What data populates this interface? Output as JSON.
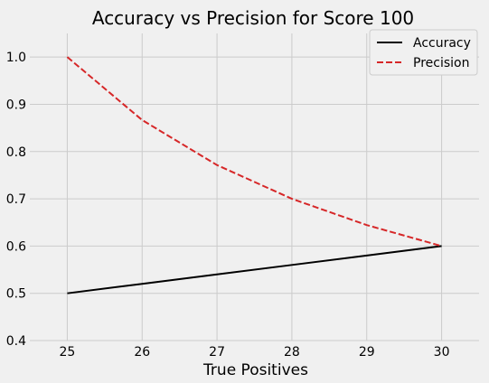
{
  "chart_data": {
    "type": "line",
    "title": "Accuracy vs Precision for Score 100",
    "xlabel": "True Positives",
    "ylabel": "",
    "x": [
      25,
      26,
      27,
      28,
      29,
      30
    ],
    "xlim": [
      24.5,
      30.5
    ],
    "ylim": [
      0.4,
      1.05
    ],
    "xticks": [
      25,
      26,
      27,
      28,
      29,
      30
    ],
    "yticks": [
      0.4,
      0.5,
      0.6,
      0.7,
      0.8,
      0.9,
      1.0
    ],
    "xtick_labels": [
      "25",
      "26",
      "27",
      "28",
      "29",
      "30"
    ],
    "ytick_labels": [
      "0.4",
      "0.5",
      "0.6",
      "0.7",
      "0.8",
      "0.9",
      "1.0"
    ],
    "grid": true,
    "legend_position": "top-right",
    "series": [
      {
        "name": "Accuracy",
        "values": [
          0.5,
          0.52,
          0.54,
          0.56,
          0.58,
          0.6
        ],
        "color": "#000000",
        "style": "solid"
      },
      {
        "name": "Precision",
        "values": [
          1.0,
          0.8667,
          0.7714,
          0.7,
          0.6444,
          0.6
        ],
        "color": "#d62728",
        "style": "dashed"
      }
    ]
  },
  "colors": {
    "background": "#f0f0f0",
    "grid": "#cbcbcb"
  }
}
